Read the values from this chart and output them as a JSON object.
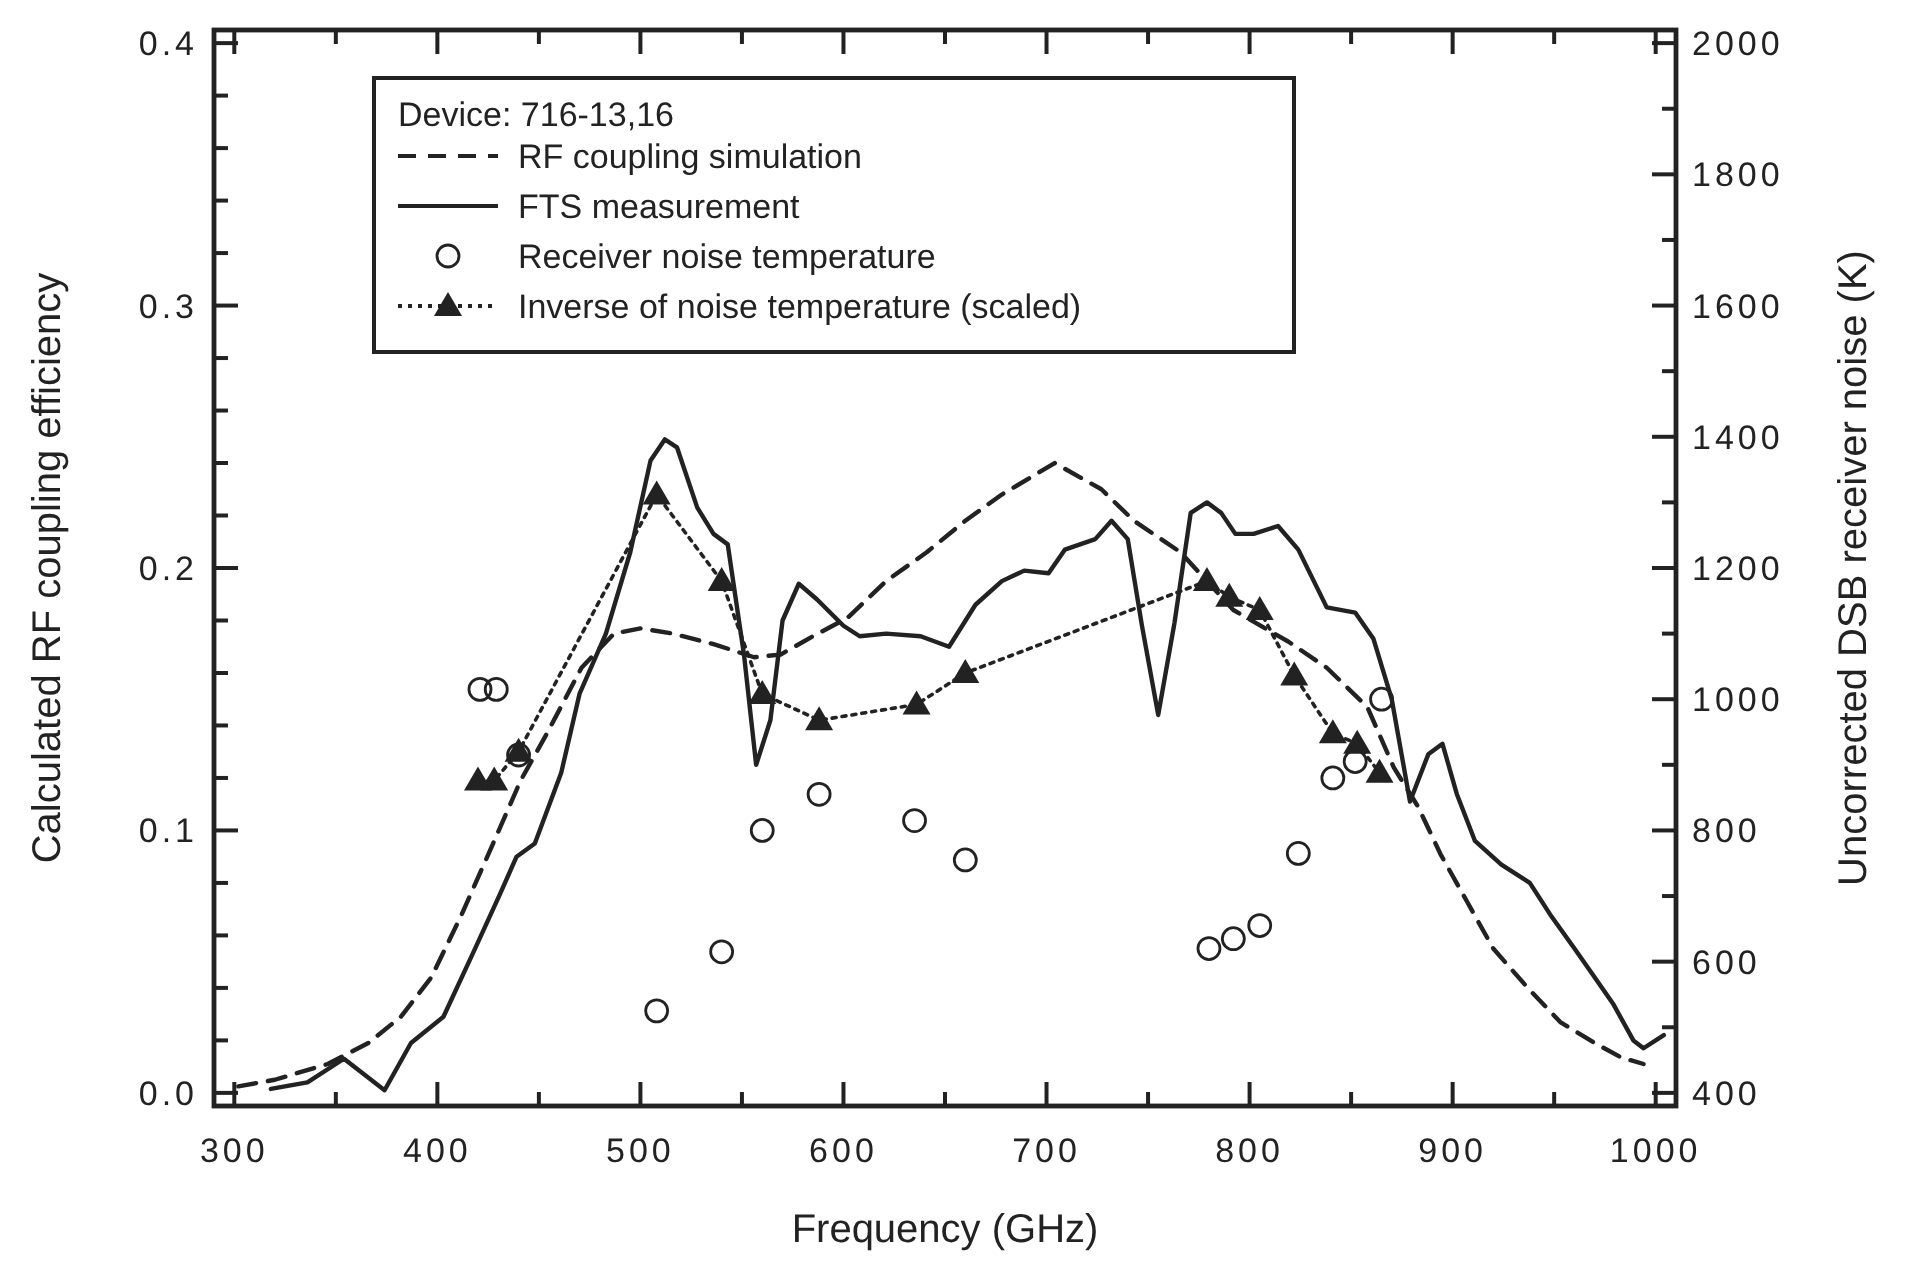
{
  "chart_data": {
    "type": "line",
    "xlabel": "Frequency (GHz)",
    "ylabel": "Calculated RF coupling efficiency",
    "y2label": "Uncorrected DSB receiver noise (K)",
    "legend_title": "Device: 716-13,16",
    "legend": "top left",
    "grid": false,
    "xlim": [
      290,
      1010
    ],
    "ylim": [
      -0.005,
      0.405
    ],
    "y2lim": [
      380,
      2020
    ],
    "xticks": [
      300,
      {
        "value": 350,
        "label": null
      },
      400,
      {
        "value": 450,
        "label": null
      },
      500,
      {
        "value": 550,
        "label": null
      },
      600,
      {
        "value": 650,
        "label": null
      },
      700,
      {
        "value": 750,
        "label": null
      },
      800,
      {
        "value": 850,
        "label": null
      },
      900,
      {
        "value": 950,
        "label": null
      },
      1000
    ],
    "yticks": [
      {
        "value": 0,
        "label": "0.0"
      },
      {
        "value": 0.02,
        "label": null
      },
      {
        "value": 0.04,
        "label": null
      },
      {
        "value": 0.06,
        "label": null
      },
      {
        "value": 0.08,
        "label": null
      },
      {
        "value": 0.1,
        "label": "0.1"
      },
      {
        "value": 0.12,
        "label": null
      },
      {
        "value": 0.14,
        "label": null
      },
      {
        "value": 0.16,
        "label": null
      },
      {
        "value": 0.18,
        "label": null
      },
      {
        "value": 0.2,
        "label": "0.2"
      },
      {
        "value": 0.22,
        "label": null
      },
      {
        "value": 0.24,
        "label": null
      },
      {
        "value": 0.26,
        "label": null
      },
      {
        "value": 0.28,
        "label": null
      },
      {
        "value": 0.3,
        "label": "0.3"
      },
      {
        "value": 0.32,
        "label": null
      },
      {
        "value": 0.34,
        "label": null
      },
      {
        "value": 0.36,
        "label": null
      },
      {
        "value": 0.38,
        "label": null
      },
      {
        "value": 0.4,
        "label": "0.4"
      }
    ],
    "y2ticks": [
      400,
      {
        "value": 500,
        "label": null
      },
      600,
      {
        "value": 700,
        "label": null
      },
      800,
      {
        "value": 900,
        "label": null
      },
      1000,
      {
        "value": 1100,
        "label": null
      },
      1200,
      {
        "value": 1300,
        "label": null
      },
      1400,
      {
        "value": 1500,
        "label": null
      },
      1600,
      {
        "value": 1700,
        "label": null
      },
      1800,
      {
        "value": 1900,
        "label": null
      },
      2000
    ],
    "series": [
      {
        "name": "RF coupling simulation",
        "line_style": "dashed",
        "marker": "none",
        "color": "#222222",
        "x": [
          302,
          320,
          346,
          366,
          382,
          397,
          412,
          428,
          441,
          454,
          471,
          487,
          500,
          516,
          536,
          556,
          569,
          585,
          602,
          621,
          641,
          660,
          678,
          704,
          727,
          743,
          766,
          792,
          819,
          838,
          858,
          871,
          883,
          894,
          907,
          920,
          937,
          953,
          970,
          983,
          994
        ],
        "values": [
          0.0025,
          0.005,
          0.011,
          0.019,
          0.029,
          0.044,
          0.068,
          0.096,
          0.119,
          0.137,
          0.162,
          0.175,
          0.177,
          0.175,
          0.171,
          0.166,
          0.167,
          0.174,
          0.181,
          0.195,
          0.206,
          0.218,
          0.228,
          0.24,
          0.23,
          0.218,
          0.206,
          0.184,
          0.172,
          0.162,
          0.147,
          0.124,
          0.109,
          0.091,
          0.073,
          0.055,
          0.04,
          0.027,
          0.019,
          0.0135,
          0.011
        ]
      },
      {
        "name": "FTS measurement",
        "line_style": "solid",
        "marker": "none",
        "color": "#222222",
        "x": [
          318,
          336,
          354,
          374,
          387,
          403,
          418,
          431,
          439,
          448,
          461,
          470,
          483,
          495,
          505,
          512,
          518,
          528,
          536,
          543,
          551,
          557,
          564,
          570,
          578,
          587,
          600,
          608,
          621,
          638,
          652,
          665,
          678,
          689,
          701,
          709,
          724,
          732,
          740,
          747,
          755,
          763,
          771,
          779,
          786,
          793,
          802,
          814,
          824,
          838,
          852,
          861,
          870,
          879,
          888,
          895,
          902,
          911,
          924,
          938,
          948,
          960,
          970,
          979,
          989,
          994,
          1004
        ],
        "values": [
          0.0015,
          0.004,
          0.013,
          0.001,
          0.019,
          0.029,
          0.054,
          0.076,
          0.09,
          0.095,
          0.122,
          0.152,
          0.175,
          0.206,
          0.241,
          0.249,
          0.246,
          0.223,
          0.213,
          0.209,
          0.167,
          0.125,
          0.142,
          0.18,
          0.194,
          0.188,
          0.178,
          0.174,
          0.175,
          0.174,
          0.17,
          0.186,
          0.195,
          0.199,
          0.198,
          0.207,
          0.211,
          0.218,
          0.211,
          0.178,
          0.144,
          0.179,
          0.221,
          0.225,
          0.221,
          0.213,
          0.213,
          0.216,
          0.207,
          0.185,
          0.183,
          0.173,
          0.15,
          0.111,
          0.129,
          0.133,
          0.114,
          0.096,
          0.087,
          0.08,
          0.068,
          0.055,
          0.044,
          0.034,
          0.02,
          0.017,
          0.022
        ]
      },
      {
        "name": "Receiver noise temperature",
        "type": "scatter",
        "axis": "y2",
        "marker": "circle",
        "color": "#222222",
        "x": [
          421,
          429,
          440,
          508,
          540,
          560,
          588,
          635,
          660,
          780,
          792,
          805,
          824,
          841,
          852,
          865
        ],
        "values": [
          1015,
          1015,
          915,
          525,
          615,
          800,
          855,
          815,
          755,
          620,
          635,
          655,
          765,
          880,
          905,
          1000
        ]
      },
      {
        "name": "Inverse of noise temperature (scaled)",
        "line_style": "dotted",
        "marker": "triangle",
        "color": "#222222",
        "x": [
          420,
          428,
          440,
          508,
          540,
          560,
          588,
          636,
          660,
          779,
          790,
          805,
          822,
          841,
          853,
          864
        ],
        "values": [
          0.119,
          0.119,
          0.13,
          0.228,
          0.195,
          0.152,
          0.142,
          0.148,
          0.16,
          0.195,
          0.189,
          0.184,
          0.159,
          0.137,
          0.133,
          0.122
        ]
      }
    ]
  }
}
